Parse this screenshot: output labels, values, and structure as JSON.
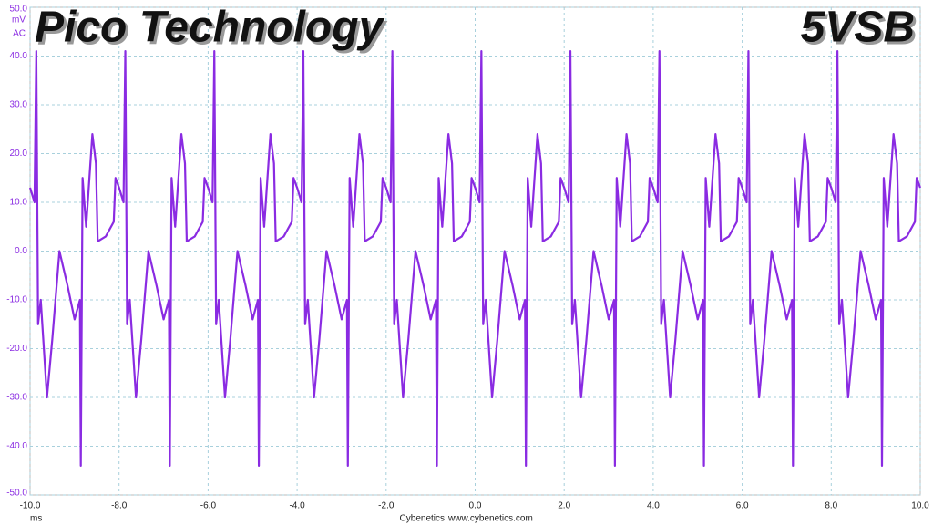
{
  "chart_data": {
    "type": "line",
    "title": "Pico Technology",
    "annotation": "5VSB",
    "y_axis_label": {
      "unit": "mV",
      "coupling": "AC"
    },
    "x_axis_label": "ms",
    "credit": [
      "Cybenetics",
      "www.cybenetics.com"
    ],
    "color": "#8a2be2",
    "grid": true,
    "xlim": [
      -10,
      10
    ],
    "ylim": [
      -50,
      50
    ],
    "xticks": [
      {
        "value": -10,
        "label": "-10.0"
      },
      {
        "value": -8,
        "label": "-8.0"
      },
      {
        "value": -6,
        "label": "-6.0"
      },
      {
        "value": -4,
        "label": "-4.0"
      },
      {
        "value": -2,
        "label": "-2.0"
      },
      {
        "value": 0,
        "label": "0.0"
      },
      {
        "value": 2,
        "label": "2.0"
      },
      {
        "value": 4,
        "label": "4.0"
      },
      {
        "value": 6,
        "label": "6.0"
      },
      {
        "value": 8,
        "label": "8.0"
      },
      {
        "value": 10,
        "label": "10.0"
      }
    ],
    "yticks": [
      {
        "value": -50,
        "label": "-50.0"
      },
      {
        "value": -40,
        "label": "-40.0"
      },
      {
        "value": -30,
        "label": "-30.0"
      },
      {
        "value": -20,
        "label": "-20.0"
      },
      {
        "value": -10,
        "label": "-10.0"
      },
      {
        "value": 0,
        "label": "0.0"
      },
      {
        "value": 10,
        "label": "10.0"
      },
      {
        "value": 20,
        "label": "20.0"
      },
      {
        "value": 30,
        "label": "30.0"
      },
      {
        "value": 40,
        "label": "40.0"
      },
      {
        "value": 50,
        "label": "50.0"
      }
    ],
    "x": [
      -10,
      -9.9,
      -9.86,
      -9.82,
      -9.76,
      -9.62,
      -9.5,
      -9.34,
      -9.16,
      -9,
      -8.88,
      -8.86,
      -8.82,
      -8.74,
      -8.6,
      -8.52,
      -8.48,
      -8.3,
      -8.12,
      -8.08,
      -8,
      -7.9,
      -7.86,
      -7.82,
      -7.76,
      -7.62,
      -7.5,
      -7.34,
      -7.16,
      -7,
      -6.88,
      -6.86,
      -6.82,
      -6.74,
      -6.6,
      -6.52,
      -6.48,
      -6.3,
      -6.12,
      -6.08,
      -6,
      -5.9,
      -5.86,
      -5.82,
      -5.76,
      -5.62,
      -5.5,
      -5.34,
      -5.16,
      -5,
      -4.88,
      -4.86,
      -4.82,
      -4.74,
      -4.6,
      -4.52,
      -4.48,
      -4.3,
      -4.12,
      -4.08,
      -4,
      -3.9,
      -3.86,
      -3.82,
      -3.76,
      -3.62,
      -3.5,
      -3.34,
      -3.16,
      -3,
      -2.88,
      -2.86,
      -2.82,
      -2.74,
      -2.6,
      -2.52,
      -2.48,
      -2.3,
      -2.12,
      -2.08,
      -2,
      -1.9,
      -1.86,
      -1.82,
      -1.76,
      -1.62,
      -1.5,
      -1.34,
      -1.16,
      -1,
      -0.88,
      -0.86,
      -0.82,
      -0.74,
      -0.6,
      -0.52,
      -0.48,
      -0.3,
      -0.12,
      -0.08,
      0,
      0.1,
      0.14,
      0.18,
      0.24,
      0.38,
      0.5,
      0.66,
      0.84,
      1,
      1.12,
      1.14,
      1.18,
      1.26,
      1.4,
      1.48,
      1.52,
      1.7,
      1.88,
      1.92,
      2,
      2.1,
      2.14,
      2.18,
      2.24,
      2.38,
      2.5,
      2.66,
      2.84,
      3,
      3.12,
      3.14,
      3.18,
      3.26,
      3.4,
      3.48,
      3.52,
      3.7,
      3.88,
      3.92,
      4,
      4.1,
      4.14,
      4.18,
      4.24,
      4.38,
      4.5,
      4.66,
      4.84,
      5,
      5.12,
      5.14,
      5.18,
      5.26,
      5.4,
      5.48,
      5.52,
      5.7,
      5.88,
      5.92,
      6,
      6.1,
      6.14,
      6.18,
      6.24,
      6.38,
      6.5,
      6.66,
      6.84,
      7,
      7.12,
      7.14,
      7.18,
      7.26,
      7.4,
      7.48,
      7.52,
      7.7,
      7.88,
      7.92,
      8,
      8.1,
      8.14,
      8.18,
      8.24,
      8.38,
      8.5,
      8.66,
      8.84,
      9,
      9.12,
      9.14,
      9.18,
      9.26,
      9.4,
      9.48,
      9.52,
      9.7,
      9.88,
      9.92,
      10
    ],
    "values": [
      13,
      10,
      41,
      -15,
      -10,
      -30,
      -18,
      0,
      -7,
      -14,
      -10,
      -44,
      15,
      5,
      24,
      18,
      2,
      3,
      6,
      15,
      13,
      10,
      41,
      -15,
      -10,
      -30,
      -18,
      0,
      -7,
      -14,
      -10,
      -44,
      15,
      5,
      24,
      18,
      2,
      3,
      6,
      15,
      13,
      10,
      41,
      -15,
      -10,
      -30,
      -18,
      0,
      -7,
      -14,
      -10,
      -44,
      15,
      5,
      24,
      18,
      2,
      3,
      6,
      15,
      13,
      10,
      41,
      -15,
      -10,
      -30,
      -18,
      0,
      -7,
      -14,
      -10,
      -44,
      15,
      5,
      24,
      18,
      2,
      3,
      6,
      15,
      13,
      10,
      41,
      -15,
      -10,
      -30,
      -18,
      0,
      -7,
      -14,
      -10,
      -44,
      15,
      5,
      24,
      18,
      2,
      3,
      6,
      15,
      13,
      10,
      41,
      -15,
      -10,
      -30,
      -18,
      0,
      -7,
      -14,
      -10,
      -44,
      15,
      5,
      24,
      18,
      2,
      3,
      6,
      15,
      13,
      10,
      41,
      -15,
      -10,
      -30,
      -18,
      0,
      -7,
      -14,
      -10,
      -44,
      15,
      5,
      24,
      18,
      2,
      3,
      6,
      15,
      13,
      10,
      41,
      -15,
      -10,
      -30,
      -18,
      0,
      -7,
      -14,
      -10,
      -44,
      15,
      5,
      24,
      18,
      2,
      3,
      6,
      15,
      13,
      10,
      41,
      -15,
      -10,
      -30,
      -18,
      0,
      -7,
      -14,
      -10,
      -44,
      15,
      5,
      24,
      18,
      2,
      3,
      6,
      15,
      13,
      10,
      41,
      -15,
      -10,
      -30,
      -18,
      0,
      -7,
      -14,
      -10,
      -44,
      15,
      5,
      24,
      18,
      2,
      3,
      6,
      15,
      13
    ]
  }
}
